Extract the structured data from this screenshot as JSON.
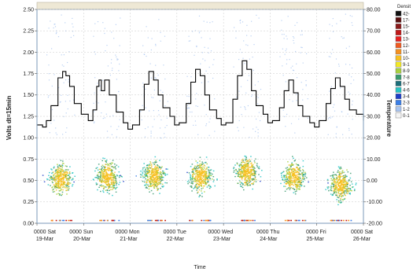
{
  "chart_data": {
    "type": "scatter",
    "title": "",
    "xlabel": "Time",
    "ylabel_left": "Volts dt=15min",
    "ylabel_right": "Temperature",
    "x_tick_labels": [
      {
        "line1": "0000 Sat",
        "line2": "19-Mar"
      },
      {
        "line1": "0000 Sun",
        "line2": "20-Mar"
      },
      {
        "line1": "0000 Mon",
        "line2": "21-Mar"
      },
      {
        "line1": "0000 Tue",
        "line2": "22-Mar"
      },
      {
        "line1": "0000 Wed",
        "line2": "23-Mar"
      },
      {
        "line1": "0000 Thu",
        "line2": "24-Mar"
      },
      {
        "line1": "0000 Fri",
        "line2": "25-Mar"
      },
      {
        "line1": "0000 Sat",
        "line2": "26-Mar"
      }
    ],
    "xlim_days": [
      0,
      7
    ],
    "ylim_left": [
      0.0,
      2.5
    ],
    "ylim_right": [
      -20.0,
      80.0
    ],
    "y_ticks_left": [
      "0.00",
      "0.25",
      "0.50",
      "0.75",
      "1.00",
      "1.25",
      "1.50",
      "1.75",
      "2.00",
      "2.25",
      "2.50"
    ],
    "y_ticks_right": [
      "-20.00",
      "-10.00",
      "0.00",
      "10.00",
      "20.00",
      "30.00",
      "40.00",
      "50.00",
      "60.00",
      "70.00",
      "80.00"
    ],
    "grid": true,
    "density": {
      "legend_title": "Densit",
      "legend_placement": "right",
      "legend_labels": [
        "42-",
        "17-",
        "15-",
        "14-",
        "13-",
        "12-",
        "11-",
        "10-",
        "9-1",
        "8-9",
        "7-8",
        "6-7",
        "4-6",
        "3-4",
        "2-3",
        "1-2",
        "0-1"
      ],
      "legend_colors": [
        "#111111",
        "#5a1010",
        "#8a1a1a",
        "#c01818",
        "#e82020",
        "#f05a20",
        "#f49020",
        "#f8c020",
        "#f2e824",
        "#a8d040",
        "#3a9a6e",
        "#1c6e7a",
        "#26c6c6",
        "#1e3ec8",
        "#3a7ee8",
        "#a8c4f0",
        "#f4f4f4"
      ],
      "daily_peak_voltage": [
        0.52,
        0.55,
        0.55,
        0.55,
        0.6,
        0.55,
        0.45
      ]
    },
    "temperature_series": {
      "axis": "right",
      "x_days": [
        0.0,
        0.12,
        0.2,
        0.3,
        0.45,
        0.55,
        0.62,
        0.7,
        0.8,
        0.95,
        1.1,
        1.2,
        1.28,
        1.33,
        1.38,
        1.45,
        1.55,
        1.7,
        1.85,
        1.95,
        2.05,
        2.2,
        2.3,
        2.4,
        2.5,
        2.6,
        2.7,
        2.85,
        2.95,
        3.05,
        3.2,
        3.3,
        3.4,
        3.5,
        3.6,
        3.7,
        3.85,
        3.95,
        4.05,
        4.2,
        4.3,
        4.4,
        4.5,
        4.6,
        4.7,
        4.85,
        4.95,
        5.05,
        5.2,
        5.3,
        5.4,
        5.5,
        5.6,
        5.7,
        5.85,
        5.95,
        6.05,
        6.2,
        6.3,
        6.4,
        6.5,
        6.6,
        6.7,
        6.85,
        7.0
      ],
      "y_temperature": [
        26,
        25,
        28,
        35,
        48,
        51,
        49,
        44,
        36,
        31,
        28,
        33,
        44,
        47,
        42,
        47,
        40,
        32,
        27,
        24,
        26,
        33,
        45,
        51,
        47,
        40,
        34,
        30,
        26,
        27,
        36,
        46,
        52,
        49,
        40,
        33,
        29,
        26,
        27,
        38,
        49,
        56,
        52,
        42,
        35,
        31,
        27,
        28,
        34,
        42,
        47,
        41,
        35,
        30,
        27,
        25,
        28,
        36,
        43,
        48,
        44,
        38,
        33,
        31,
        28
      ]
    }
  }
}
